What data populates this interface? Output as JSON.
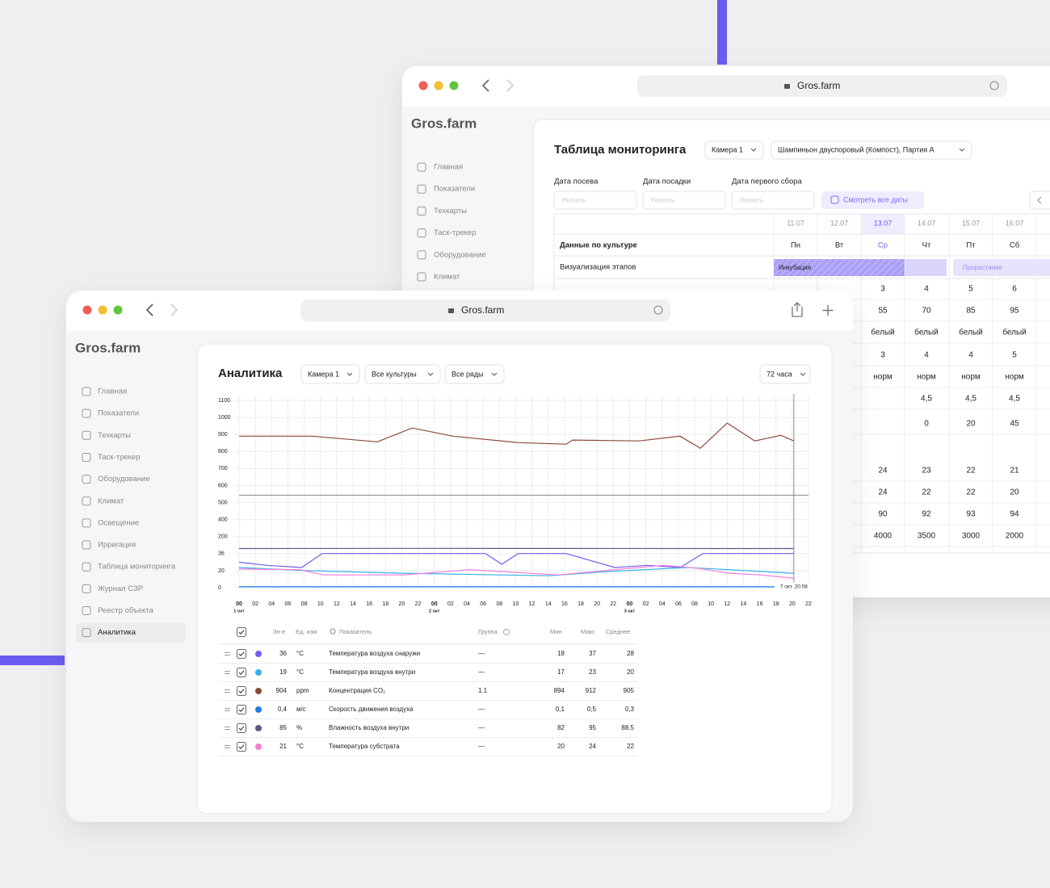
{
  "back_window": {
    "url": "Gros.farm",
    "logo": "Gros.farm",
    "nav": [
      "Главная",
      "Показатели",
      "Техкарты",
      "Таск-трекер",
      "Оборудование",
      "Климат"
    ],
    "title": "Таблица мониторинга",
    "filters": [
      "Камера 1",
      "Шампиньон двуспоровый (Компост), Партия А"
    ],
    "date_fields": [
      {
        "label": "Дата посева",
        "placeholder": "Указать"
      },
      {
        "label": "Дата посадки",
        "placeholder": "Указать"
      },
      {
        "label": "Дата первого сбора",
        "placeholder": "Указать"
      }
    ],
    "all_dates_button": "Смотреть все даты",
    "dates": [
      "11.07",
      "12.07",
      "13.07",
      "14.07",
      "15.07",
      "16.07"
    ],
    "weekdays": [
      "Пн",
      "Вт",
      "Ср",
      "Чт",
      "Пт",
      "Сб"
    ],
    "culture_row_label": "Данные по культуре",
    "stages_row_label": "Визуализация этапов",
    "stages": [
      "Инкубация",
      "Прорастание"
    ],
    "rows": [
      [
        3,
        4,
        5,
        6
      ],
      [
        55,
        70,
        85,
        95
      ],
      [
        "белый",
        "белый",
        "белый",
        "белый"
      ],
      [
        3,
        4,
        4,
        5
      ],
      [
        "норм",
        "норм",
        "норм",
        "норм"
      ],
      [
        null,
        "4,5",
        "4,5",
        "4,5"
      ],
      [
        null,
        0,
        20,
        45
      ],
      [
        24,
        23,
        22,
        21
      ],
      [
        24,
        22,
        22,
        20
      ],
      [
        90,
        92,
        93,
        94
      ],
      [
        4000,
        3500,
        3000,
        2000
      ]
    ]
  },
  "front_window": {
    "url": "Gros.farm",
    "logo": "Gros.farm",
    "nav": [
      "Главная",
      "Показатели",
      "Техкарты",
      "Таск-трекер",
      "Оборудование",
      "Климат",
      "Освещение",
      "Ирригация",
      "Таблица мониторинга",
      "Журнал СЗР",
      "Реестр объекта",
      "Аналитика"
    ],
    "title": "Аналитика",
    "filters": [
      "Камера 1",
      "Все культуры",
      "Все ряды"
    ],
    "period": "72 часа"
  },
  "chart_data": {
    "type": "line",
    "xlim": [
      0,
      70
    ],
    "ylim": [
      0,
      1100
    ],
    "grid": true,
    "yticks": [
      0,
      20,
      36,
      200,
      400,
      500,
      600,
      700,
      800,
      900,
      1000,
      1100
    ],
    "xticks": [
      {
        "value": 0,
        "label": "00"
      },
      {
        "value": 2,
        "label": "02"
      },
      {
        "value": 4,
        "label": "04"
      },
      {
        "value": 6,
        "label": "06"
      },
      {
        "value": 8,
        "label": "08"
      },
      {
        "value": 10,
        "label": "10"
      },
      {
        "value": 12,
        "label": "12"
      },
      {
        "value": 14,
        "label": "14"
      },
      {
        "value": 16,
        "label": "16"
      },
      {
        "value": 18,
        "label": "18"
      },
      {
        "value": 20,
        "label": "20"
      },
      {
        "value": 22,
        "label": "22"
      },
      {
        "value": 24,
        "label": "00"
      },
      {
        "value": 26,
        "label": "02"
      },
      {
        "value": 28,
        "label": "04"
      },
      {
        "value": 30,
        "label": "06"
      },
      {
        "value": 32,
        "label": "08"
      },
      {
        "value": 34,
        "label": "10"
      },
      {
        "value": 36,
        "label": "12"
      },
      {
        "value": 38,
        "label": "14"
      },
      {
        "value": 40,
        "label": "16"
      },
      {
        "value": 42,
        "label": "18"
      },
      {
        "value": 44,
        "label": "20"
      },
      {
        "value": 46,
        "label": "22"
      },
      {
        "value": 48,
        "label": "00"
      },
      {
        "value": 50,
        "label": "02"
      },
      {
        "value": 52,
        "label": "04"
      },
      {
        "value": 54,
        "label": "06"
      },
      {
        "value": 56,
        "label": "08"
      },
      {
        "value": 58,
        "label": "10"
      },
      {
        "value": 60,
        "label": "12"
      },
      {
        "value": 62,
        "label": "14"
      },
      {
        "value": 64,
        "label": "16"
      },
      {
        "value": 66,
        "label": "18"
      },
      {
        "value": 68,
        "label": "20"
      },
      {
        "value": 70,
        "label": "22"
      }
    ],
    "days": [
      {
        "value": 0,
        "label": "1 окт"
      },
      {
        "value": 24,
        "label": "2 окт"
      },
      {
        "value": 48,
        "label": "3 окт"
      }
    ],
    "cursor": {
      "x": 68.2,
      "label": "7 окт. 20:08"
    },
    "series": [
      {
        "name": "Температура воздуха снаружи",
        "color": "#6e5ff0",
        "x": [
          0,
          3.4,
          7.7,
          10.2,
          30.3,
          32.3,
          34.3,
          40.2,
          46.2,
          50.2,
          54.2,
          57,
          68.2
        ],
        "values": [
          28,
          25,
          23,
          37,
          37,
          26,
          37,
          37,
          23,
          25,
          23,
          37,
          37
        ]
      },
      {
        "name": "Температура воздуха внутри",
        "color": "#39b0e6",
        "x": [
          0,
          8.4,
          20.3,
          38.2,
          45.2,
          55.2,
          68.2
        ],
        "values": [
          23,
          20,
          17,
          14,
          19,
          23,
          17
        ]
      },
      {
        "name": "Концентрация CO₂",
        "color": "#8b4a3a",
        "x": [
          0,
          9,
          17,
          21.3,
          26.3,
          34.3,
          40.2,
          41,
          49.2,
          54.2,
          56.7,
          60,
          63.4,
          66.6,
          68.2
        ],
        "values": [
          890,
          890,
          857,
          938,
          890,
          852,
          843,
          867,
          862,
          890,
          819,
          967,
          862,
          895,
          862
        ]
      },
      {
        "name": "Скорость движения воздуха",
        "color": "#1a7fe0",
        "x": [
          0,
          68.2
        ],
        "values": [
          1,
          1
        ]
      },
      {
        "name": "Влажность воздуха внутри",
        "color": "#5d5590",
        "x": [
          0,
          20,
          40,
          68.2
        ],
        "values": [
          85,
          87,
          86,
          85
        ]
      },
      {
        "name": "Температура субстрата",
        "color": "#f47fd8",
        "x": [
          0,
          7.4,
          10.4,
          20.3,
          28.3,
          39.2,
          46.2,
          52.2,
          56.7,
          60.2,
          64.1,
          68.2
        ],
        "values": [
          21.5,
          21,
          15,
          15,
          21,
          15,
          21,
          25,
          22,
          17,
          15,
          11
        ]
      },
      {
        "color": "#9a9a9e",
        "x": [
          0,
          70
        ],
        "values": [
          543,
          543
        ]
      }
    ]
  },
  "table": {
    "headers": [
      "Зн-е",
      "Ед. изм",
      "Показатель",
      "Группа",
      "Мин",
      "Макс",
      "Среднее"
    ],
    "rows": [
      [
        36,
        "°C",
        "—",
        18,
        37,
        28
      ],
      [
        19,
        "°C",
        "—",
        17,
        23,
        20
      ],
      [
        904,
        "ppm",
        1.1,
        894,
        912,
        905
      ],
      [
        "0,4",
        "м/с",
        "—",
        "0,1",
        "0,5",
        "0,3"
      ],
      [
        85,
        "%",
        "—",
        82,
        95,
        88.5
      ],
      [
        21,
        "°C",
        "—",
        20,
        24,
        22
      ]
    ]
  }
}
